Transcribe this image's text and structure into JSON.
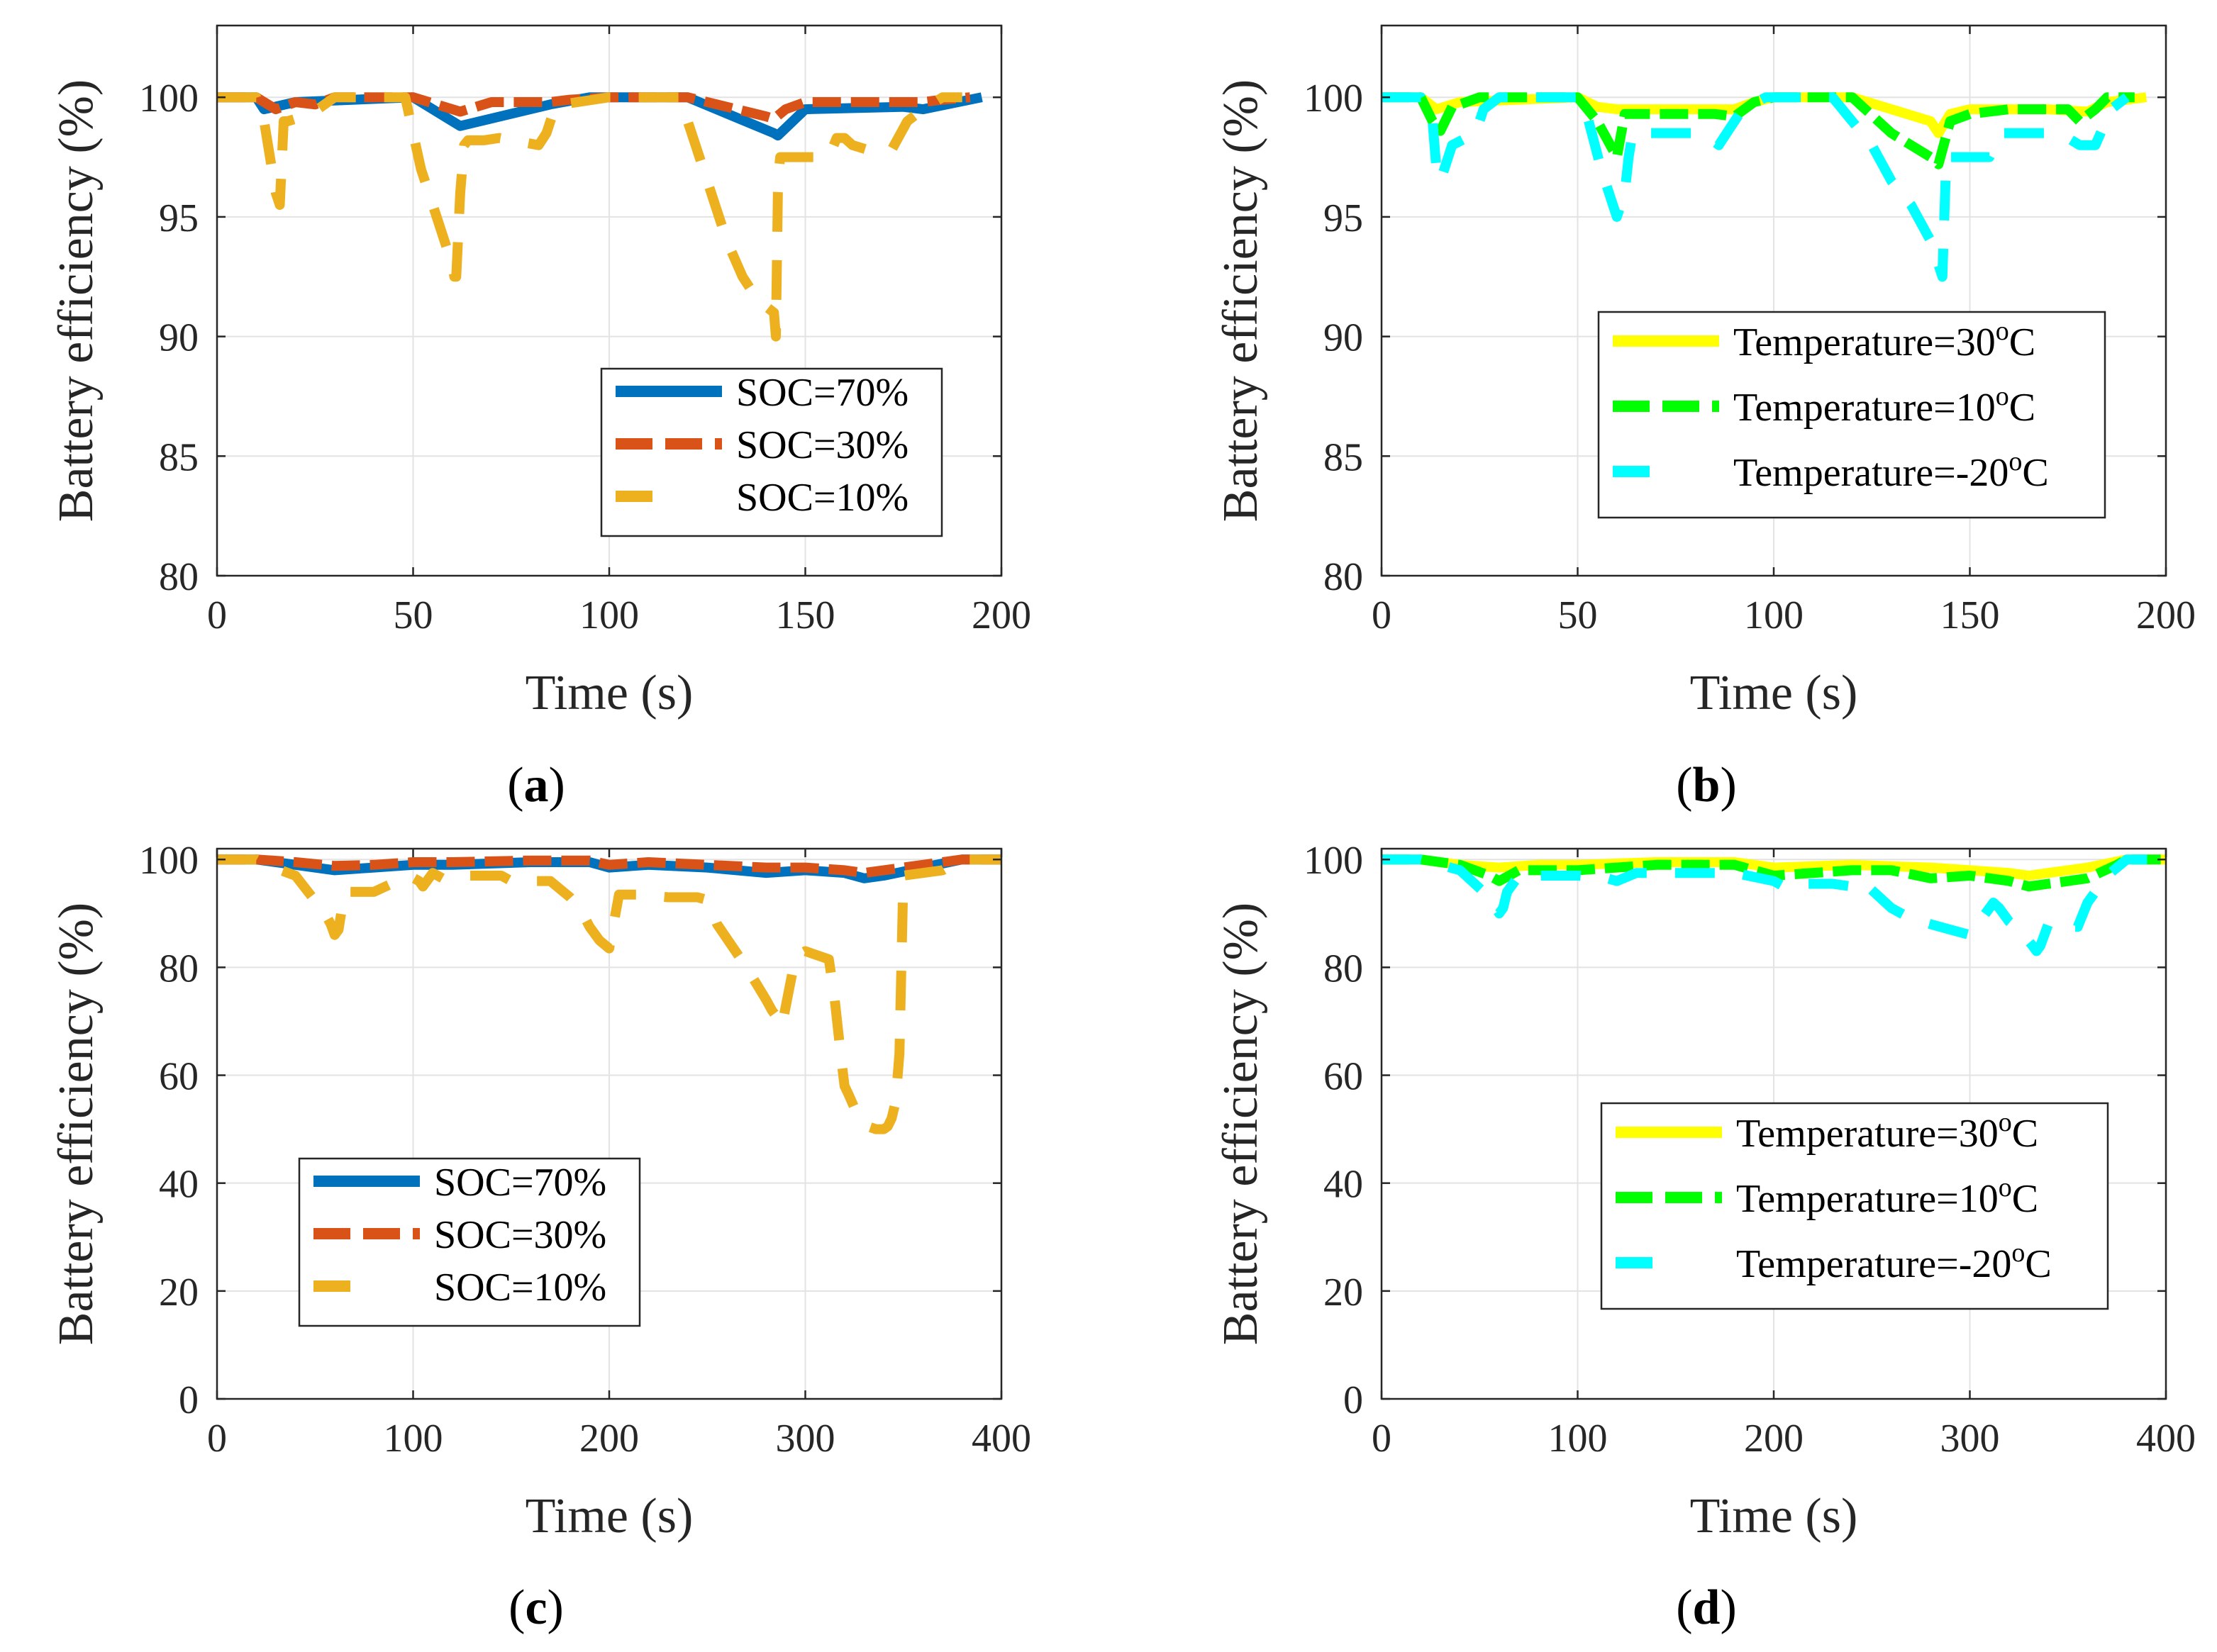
{
  "chart_data": [
    {
      "panel": "a",
      "type": "line",
      "xlabel": "Time (s)",
      "ylabel": "Battery efficiency (%)",
      "xlim": [
        0,
        200
      ],
      "ylim": [
        80,
        103
      ],
      "xticks": [
        0,
        50,
        100,
        150,
        200
      ],
      "yticks": [
        80,
        85,
        90,
        95,
        100
      ],
      "legend_position": "lower-right",
      "series": [
        {
          "name": "SOC=70%",
          "color": "#0072BD",
          "style": "solid",
          "x": [
            0,
            10,
            12,
            20,
            50,
            60,
            62,
            85,
            95,
            100,
            120,
            142,
            143,
            150,
            175,
            180,
            195
          ],
          "y": [
            100,
            100,
            99.5,
            99.8,
            100,
            99,
            98.8,
            99.7,
            100,
            100,
            100,
            98.5,
            98.4,
            99.5,
            99.6,
            99.5,
            100
          ]
        },
        {
          "name": "SOC=30%",
          "color": "#D95319",
          "style": "dash",
          "x": [
            0,
            10,
            15,
            20,
            25,
            30,
            50,
            60,
            62,
            70,
            85,
            90,
            100,
            120,
            140,
            142,
            145,
            150,
            160,
            170,
            180,
            185,
            192
          ],
          "y": [
            100,
            100,
            99.5,
            99.8,
            99.7,
            100,
            100,
            99.5,
            99.4,
            99.8,
            99.8,
            99.9,
            100,
            100,
            99.2,
            99.1,
            99.5,
            99.8,
            99.8,
            99.8,
            99.8,
            99.9,
            100
          ]
        },
        {
          "name": "SOC=10%",
          "color": "#EDB120",
          "style": "longdash",
          "x": [
            0,
            10,
            12,
            14,
            15,
            16,
            17,
            18,
            20,
            24,
            30,
            48,
            52,
            56,
            58,
            60,
            60.5,
            61,
            62,
            63,
            64,
            68,
            72,
            82,
            84,
            85,
            86,
            88,
            100,
            118,
            122,
            126,
            130,
            134,
            138,
            142,
            142.5,
            143,
            143.3,
            143.6,
            148,
            155,
            156,
            158,
            160,
            162,
            166,
            172,
            176,
            180,
            185,
            190
          ],
          "y": [
            100,
            100,
            99,
            97,
            96,
            95.5,
            99,
            99,
            99.1,
            99.3,
            100,
            100,
            97,
            95,
            94,
            93,
            92.5,
            92.5,
            96,
            98,
            98.2,
            98.2,
            98.3,
            98,
            98.5,
            99,
            99.5,
            99.7,
            100,
            100,
            98,
            96,
            94,
            92.5,
            91.5,
            91,
            90,
            96,
            97,
            97.5,
            97.5,
            97.5,
            97.5,
            98.3,
            98.3,
            98,
            97.8,
            97.8,
            99,
            99.5,
            100,
            100
          ]
        }
      ]
    },
    {
      "panel": "b",
      "type": "line",
      "xlabel": "Time (s)",
      "ylabel": "Battery efficiency (%)",
      "xlim": [
        0,
        200
      ],
      "ylim": [
        80,
        103
      ],
      "xticks": [
        0,
        50,
        100,
        150,
        200
      ],
      "yticks": [
        80,
        85,
        90,
        95,
        100
      ],
      "legend_position": "center-right",
      "series": [
        {
          "name": "Temperature=30°C",
          "color": "#FFFF00",
          "style": "solid",
          "x": [
            0,
            10,
            14,
            20,
            50,
            55,
            60,
            90,
            95,
            100,
            120,
            140,
            142,
            145,
            150,
            170,
            180,
            185,
            195
          ],
          "y": [
            100,
            100,
            99.5,
            99.8,
            100,
            99.6,
            99.5,
            99.5,
            99.8,
            100,
            100,
            99,
            98.5,
            99.3,
            99.5,
            99.5,
            99.4,
            99.8,
            100
          ]
        },
        {
          "name": "Temperature=10°C",
          "color": "#00FF00",
          "style": "dash",
          "x": [
            0,
            10,
            13,
            15,
            18,
            20,
            25,
            30,
            50,
            55,
            60,
            62,
            70,
            85,
            90,
            95,
            100,
            120,
            130,
            140,
            142,
            145,
            150,
            160,
            175,
            178,
            182,
            185,
            192
          ],
          "y": [
            100,
            100,
            99,
            98.6,
            99.6,
            99.7,
            100,
            100,
            100,
            99,
            97.5,
            99.3,
            99.3,
            99.3,
            99.2,
            99.8,
            100,
            100,
            98.5,
            97.5,
            97.2,
            99,
            99.3,
            99.5,
            99.5,
            99,
            99.5,
            100,
            100
          ]
        },
        {
          "name": "Temperature=-20°C",
          "color": "#00FFFF",
          "style": "longdash",
          "x": [
            0,
            10,
            13,
            14,
            15,
            16,
            18,
            24,
            26,
            30,
            50,
            52,
            56,
            58,
            60,
            61,
            62,
            63,
            64,
            72,
            82,
            86,
            88,
            92,
            98,
            115,
            120,
            125,
            130,
            135,
            140,
            142,
            143,
            144,
            145,
            150,
            155,
            158,
            162,
            170,
            175,
            178,
            182,
            186,
            190
          ],
          "y": [
            100,
            100,
            99,
            97,
            96.5,
            97,
            98,
            98.5,
            99.5,
            100,
            100,
            99.5,
            97,
            96,
            95,
            95.5,
            96,
            97.5,
            98.5,
            98.5,
            98.5,
            98,
            98.5,
            99.5,
            100,
            100,
            99,
            98,
            96.5,
            95.5,
            94,
            93,
            92.5,
            97.5,
            97.5,
            97.5,
            97.5,
            98.5,
            98.5,
            98.5,
            98.3,
            98,
            98,
            99.5,
            100
          ]
        }
      ]
    },
    {
      "panel": "c",
      "type": "line",
      "xlabel": "Time (s)",
      "ylabel": "Battery efficiency (%)",
      "xlim": [
        0,
        400
      ],
      "ylim": [
        0,
        102
      ],
      "xticks": [
        0,
        100,
        200,
        300,
        400
      ],
      "yticks": [
        0,
        20,
        40,
        60,
        80,
        100
      ],
      "legend_position": "lower-left",
      "series": [
        {
          "name": "SOC=70%",
          "color": "#0072BD",
          "style": "solid",
          "x": [
            0,
            20,
            40,
            60,
            80,
            100,
            120,
            160,
            190,
            200,
            220,
            250,
            280,
            300,
            320,
            330,
            340,
            360,
            380,
            400
          ],
          "y": [
            100,
            100,
            99,
            98,
            98.5,
            99,
            99,
            99.5,
            99.5,
            98.5,
            99,
            98.5,
            97.5,
            98,
            97.5,
            96.5,
            97,
            98.5,
            100,
            100
          ]
        },
        {
          "name": "SOC=30%",
          "color": "#D95319",
          "style": "dash",
          "x": [
            0,
            20,
            40,
            60,
            80,
            100,
            120,
            160,
            190,
            200,
            220,
            250,
            280,
            300,
            320,
            330,
            340,
            360,
            380,
            400
          ],
          "y": [
            100,
            100,
            99.5,
            98.8,
            99,
            99.5,
            99.5,
            99.8,
            99.8,
            99,
            99.5,
            99,
            98.5,
            98.5,
            98,
            97.5,
            98,
            99,
            100,
            100
          ]
        },
        {
          "name": "SOC=10%",
          "color": "#EDB120",
          "style": "longdash",
          "x": [
            0,
            20,
            25,
            40,
            55,
            58,
            60,
            62,
            65,
            72,
            80,
            98,
            103,
            105,
            107,
            110,
            115,
            120,
            125,
            130,
            145,
            150,
            160,
            170,
            180,
            185,
            190,
            195,
            200,
            205,
            215,
            230,
            245,
            250,
            253,
            255,
            270,
            275,
            280,
            283,
            285,
            288,
            295,
            300,
            312,
            315,
            318,
            320,
            322,
            328,
            332,
            336,
            340,
            342,
            344,
            346,
            348,
            350,
            370,
            380,
            400
          ],
          "y": [
            100,
            100,
            99,
            97,
            90,
            88,
            86,
            87,
            94,
            94,
            94,
            97,
            96,
            95,
            96,
            97.5,
            96.5,
            97,
            97,
            97,
            97,
            96,
            96,
            96,
            93,
            91,
            87.5,
            85,
            83.5,
            93.5,
            93.5,
            93,
            93,
            92.5,
            90,
            88,
            80,
            77,
            74,
            72,
            71,
            69,
            82,
            83,
            81.5,
            74,
            64,
            58,
            56.5,
            51.5,
            50.5,
            50,
            50,
            50.5,
            52,
            55,
            64,
            97,
            98,
            100,
            100
          ]
        }
      ]
    },
    {
      "panel": "d",
      "type": "line",
      "xlabel": "Time (s)",
      "ylabel": "Battery efficiency (%)",
      "xlim": [
        0,
        400
      ],
      "ylim": [
        0,
        102
      ],
      "xticks": [
        0,
        100,
        200,
        300,
        400
      ],
      "yticks": [
        0,
        20,
        40,
        60,
        80,
        100
      ],
      "legend_position": "lower-right",
      "series": [
        {
          "name": "Temperature=30°C",
          "color": "#FFFF00",
          "style": "solid",
          "x": [
            0,
            20,
            40,
            60,
            80,
            100,
            140,
            180,
            200,
            240,
            280,
            300,
            320,
            330,
            340,
            360,
            380,
            400
          ],
          "y": [
            100,
            100,
            99,
            98.5,
            99,
            99,
            99.5,
            99.5,
            98.5,
            99,
            98.5,
            98,
            97.5,
            97,
            97.5,
            98.5,
            100,
            100
          ]
        },
        {
          "name": "Temperature=10°C",
          "color": "#00FF00",
          "style": "dash",
          "x": [
            0,
            20,
            40,
            55,
            60,
            70,
            100,
            140,
            180,
            200,
            240,
            260,
            280,
            300,
            320,
            330,
            340,
            360,
            375,
            380,
            400
          ],
          "y": [
            100,
            100,
            99,
            97,
            96,
            98,
            98,
            99,
            99,
            97,
            98,
            98,
            96.5,
            97,
            96,
            95,
            95.5,
            96.5,
            99,
            100,
            100
          ]
        },
        {
          "name": "Temperature=-20°C",
          "color": "#00FFFF",
          "style": "longdash",
          "x": [
            0,
            20,
            40,
            55,
            58,
            60,
            62,
            64,
            70,
            80,
            100,
            115,
            120,
            130,
            165,
            180,
            200,
            205,
            210,
            230,
            240,
            245,
            260,
            270,
            280,
            290,
            300,
            312,
            315,
            320,
            325,
            332,
            334,
            336,
            340,
            345,
            355,
            360,
            370,
            380,
            400
          ],
          "y": [
            100,
            100,
            98,
            93,
            91,
            90,
            91,
            94,
            97,
            97,
            97,
            96.5,
            96,
            97.5,
            97.5,
            97.5,
            96,
            95,
            95.5,
            95.5,
            95,
            96,
            91,
            89,
            88,
            87,
            86,
            92,
            91,
            88.5,
            87,
            84,
            83,
            84,
            88,
            87.5,
            87.5,
            92,
            97,
            100,
            100
          ]
        }
      ]
    }
  ],
  "panel_labels": [
    {
      "open": "(",
      "letter": "a",
      "close": ")"
    },
    {
      "open": "(",
      "letter": "b",
      "close": ")"
    },
    {
      "open": "(",
      "letter": "c",
      "close": ")"
    },
    {
      "open": "(",
      "letter": "d",
      "close": ")"
    }
  ]
}
